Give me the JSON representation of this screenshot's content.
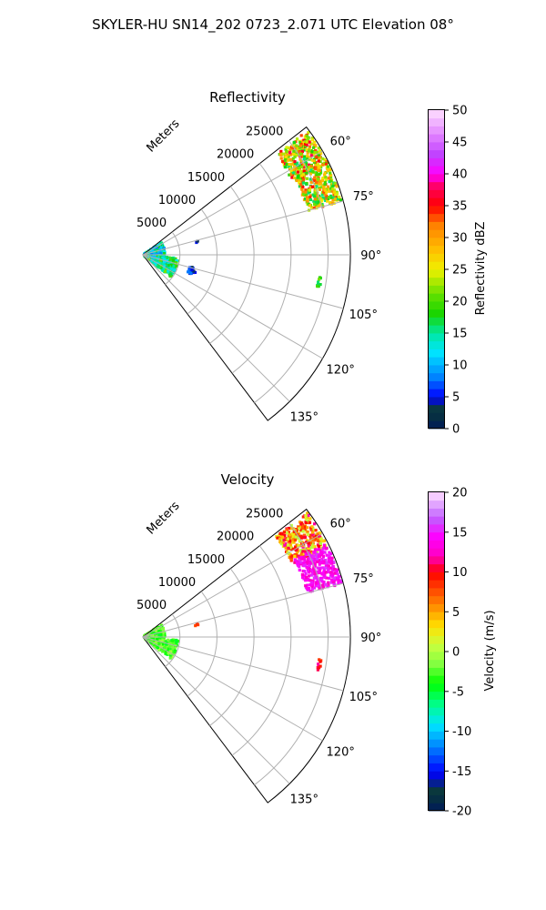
{
  "figure": {
    "suptitle": "SKYLER-HU  SN14_202  0723_2.071 UTC Elevation 08°"
  },
  "chart_data": [
    {
      "type": "heatmap",
      "projection": "polar-sector",
      "title": "Reflectivity",
      "radial_label": "Meters",
      "r_ticks": [
        5000,
        10000,
        15000,
        20000,
        25000
      ],
      "r_tick_labels": [
        "5000",
        "10000",
        "15000",
        "20000",
        "25000"
      ],
      "rlim": [
        0,
        28000
      ],
      "theta_ticks": [
        60,
        75,
        90,
        105,
        120,
        135
      ],
      "theta_tick_labels": [
        "60°",
        "75°",
        "90°",
        "105°",
        "120°",
        "135°"
      ],
      "theta_range": [
        52,
        143
      ],
      "grid": true,
      "colorbar": {
        "label": "Reflectivity dBZ",
        "min": 0,
        "max": 50,
        "ticks": [
          0,
          5,
          10,
          15,
          20,
          25,
          30,
          35,
          40,
          45,
          50
        ]
      },
      "regions": [
        {
          "theta_range": [
            53,
            64
          ],
          "r_range": [
            22500,
            27800
          ],
          "value_low": 15,
          "value_high": 38
        },
        {
          "theta_range": [
            63,
            75
          ],
          "r_range": [
            23000,
            27800
          ],
          "value_low": 15,
          "value_high": 35
        },
        {
          "theta_range": [
            56,
            95
          ],
          "r_range": [
            200,
            3000
          ],
          "value_low": 8,
          "value_high": 18
        },
        {
          "theta_range": [
            95,
            128
          ],
          "r_range": [
            300,
            4800
          ],
          "value_low": 10,
          "value_high": 22
        },
        {
          "theta_range": [
            104,
            112
          ],
          "r_range": [
            6500,
            7500
          ],
          "value_low": 3,
          "value_high": 8
        },
        {
          "theta_range": [
            76,
            79
          ],
          "r_range": [
            7200,
            7700
          ],
          "value_low": 3,
          "value_high": 6
        },
        {
          "theta_range": [
            97,
            101
          ],
          "r_range": [
            23900,
            24300
          ],
          "value_low": 15,
          "value_high": 22
        }
      ]
    },
    {
      "type": "heatmap",
      "projection": "polar-sector",
      "title": "Velocity",
      "radial_label": "Meters",
      "r_ticks": [
        5000,
        10000,
        15000,
        20000,
        25000
      ],
      "r_tick_labels": [
        "5000",
        "10000",
        "15000",
        "20000",
        "25000"
      ],
      "rlim": [
        0,
        28000
      ],
      "theta_ticks": [
        60,
        75,
        90,
        105,
        120,
        135
      ],
      "theta_tick_labels": [
        "60°",
        "75°",
        "90°",
        "105°",
        "120°",
        "135°"
      ],
      "theta_range": [
        52,
        143
      ],
      "grid": true,
      "colorbar": {
        "label": "Velocity (m/s)",
        "min": -20,
        "max": 20,
        "ticks": [
          -20,
          -15,
          -10,
          -5,
          0,
          5,
          10,
          15,
          20
        ]
      },
      "regions": [
        {
          "theta_range": [
            53,
            64
          ],
          "r_range": [
            22500,
            27800
          ],
          "value_low": 0,
          "value_high": 12
        },
        {
          "theta_range": [
            63,
            75
          ],
          "r_range": [
            23000,
            27800
          ],
          "value_low": 12,
          "value_high": 16
        },
        {
          "theta_range": [
            56,
            95
          ],
          "r_range": [
            200,
            3000
          ],
          "value_low": -5,
          "value_high": 0
        },
        {
          "theta_range": [
            95,
            128
          ],
          "r_range": [
            300,
            4800
          ],
          "value_low": -5,
          "value_high": 0
        },
        {
          "theta_range": [
            76,
            79
          ],
          "r_range": [
            7200,
            7700
          ],
          "value_low": 7,
          "value_high": 10
        },
        {
          "theta_range": [
            97,
            101
          ],
          "r_range": [
            23900,
            24300
          ],
          "value_low": 8,
          "value_high": 12
        }
      ]
    }
  ]
}
